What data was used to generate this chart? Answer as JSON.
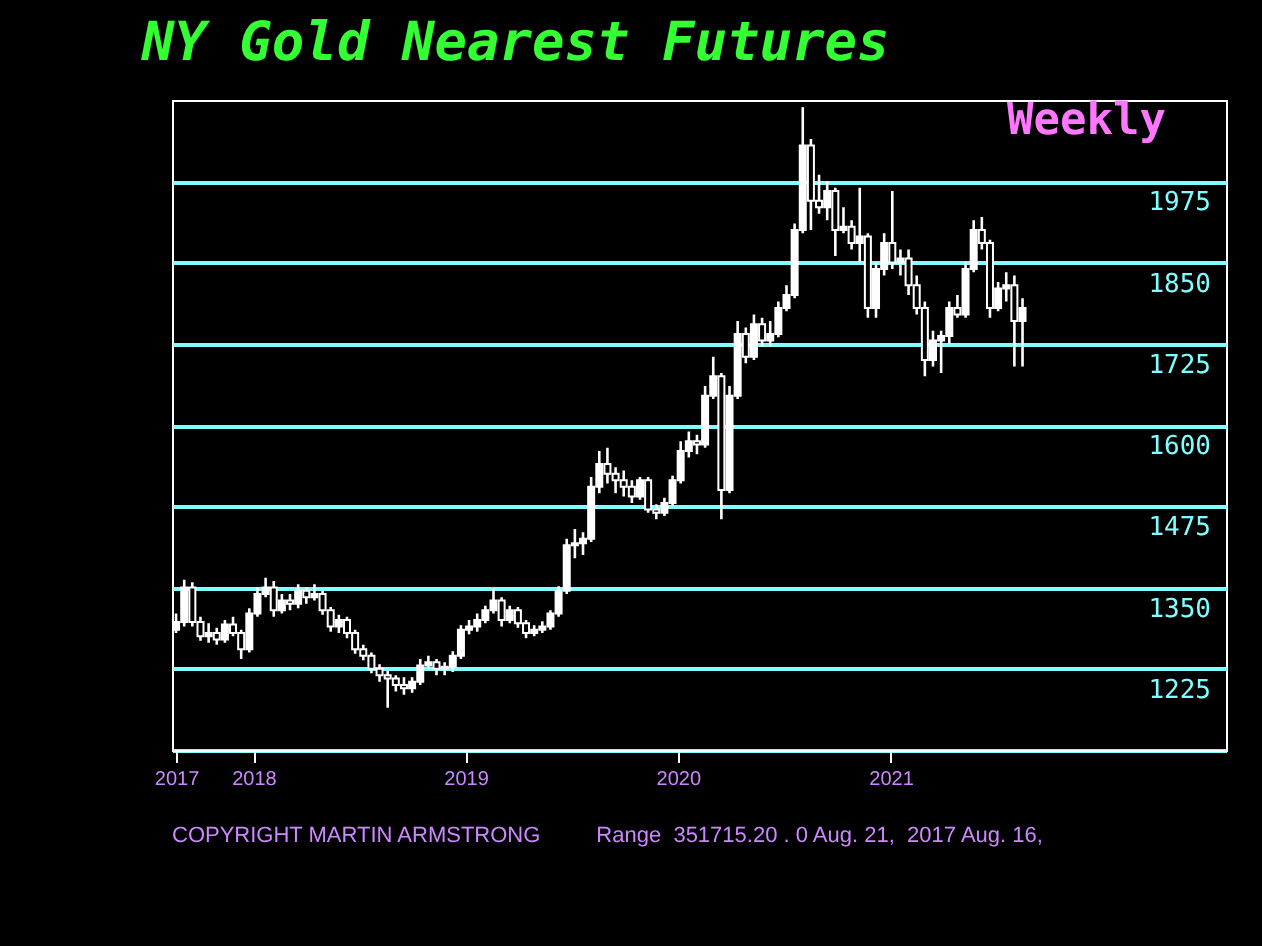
{
  "chart_data": {
    "type": "candlestick",
    "title": "NY Gold Nearest Futures",
    "subtitle": "Weekly",
    "color": "#ffffff",
    "annotations": [
      "COPYRIGHT MARTIN ARMSTRONG",
      "Range  351715.20 . 0 Aug. 21,  2017 Aug. 16,"
    ],
    "xlim": [
      "2017-08-14",
      "2022-08-01"
    ],
    "xticks": [
      {
        "value": "2017-08-21",
        "label": "2017"
      },
      "2018",
      "2019",
      "2020",
      "2021"
    ],
    "ylim": [
      1100,
      2100
    ],
    "yticks": [
      {
        "value": 1100,
        "label": null
      },
      1225,
      1350,
      1475,
      1600,
      1725,
      1850,
      1975
    ],
    "grid": "y",
    "x": [
      "2017-08-21",
      "2017-09-04",
      "2017-09-18",
      "2017-10-02",
      "2017-10-16",
      "2017-10-30",
      "2017-11-13",
      "2017-11-27",
      "2017-12-11",
      "2017-12-25",
      "2018-01-08",
      "2018-01-22",
      "2018-02-05",
      "2018-02-19",
      "2018-03-05",
      "2018-03-19",
      "2018-04-02",
      "2018-04-16",
      "2018-04-30",
      "2018-05-14",
      "2018-05-28",
      "2018-06-11",
      "2018-06-25",
      "2018-07-09",
      "2018-07-23",
      "2018-08-06",
      "2018-08-20",
      "2018-09-03",
      "2018-09-17",
      "2018-10-01",
      "2018-10-15",
      "2018-10-29",
      "2018-11-12",
      "2018-11-26",
      "2018-12-10",
      "2018-12-24",
      "2019-01-07",
      "2019-01-21",
      "2019-02-04",
      "2019-02-18",
      "2019-03-04",
      "2019-03-18",
      "2019-04-01",
      "2019-04-15",
      "2019-04-29",
      "2019-05-13",
      "2019-05-27",
      "2019-06-10",
      "2019-06-24",
      "2019-07-08",
      "2019-07-22",
      "2019-08-05",
      "2019-08-19",
      "2019-09-02",
      "2019-09-16",
      "2019-09-30",
      "2019-10-14",
      "2019-10-28",
      "2019-11-11",
      "2019-11-25",
      "2019-12-09",
      "2019-12-23",
      "2020-01-06",
      "2020-01-20",
      "2020-02-03",
      "2020-02-17",
      "2020-03-02",
      "2020-03-16",
      "2020-03-30",
      "2020-04-13",
      "2020-04-27",
      "2020-05-11",
      "2020-05-25",
      "2020-06-08",
      "2020-06-22",
      "2020-07-06",
      "2020-07-20",
      "2020-08-03",
      "2020-08-17",
      "2020-08-31",
      "2020-09-14",
      "2020-09-28",
      "2020-10-12",
      "2020-10-26",
      "2020-11-09",
      "2020-11-23",
      "2020-12-07",
      "2020-12-21",
      "2021-01-04",
      "2021-01-18",
      "2021-02-01",
      "2021-02-15",
      "2021-03-01",
      "2021-03-15",
      "2021-03-29",
      "2021-04-12",
      "2021-04-26",
      "2021-05-10",
      "2021-05-24",
      "2021-06-07",
      "2021-06-21",
      "2021-07-05",
      "2021-07-19",
      "2021-08-02",
      "2021-08-16"
    ],
    "ohlc": [
      [
        1285,
        1310,
        1280,
        1297
      ],
      [
        1297,
        1362,
        1290,
        1350
      ],
      [
        1350,
        1358,
        1290,
        1297
      ],
      [
        1297,
        1305,
        1268,
        1275
      ],
      [
        1275,
        1295,
        1265,
        1280
      ],
      [
        1280,
        1288,
        1262,
        1270
      ],
      [
        1270,
        1300,
        1265,
        1293
      ],
      [
        1293,
        1305,
        1275,
        1280
      ],
      [
        1280,
        1285,
        1240,
        1255
      ],
      [
        1255,
        1318,
        1250,
        1310
      ],
      [
        1310,
        1350,
        1305,
        1340
      ],
      [
        1340,
        1365,
        1335,
        1350
      ],
      [
        1350,
        1360,
        1305,
        1315
      ],
      [
        1315,
        1340,
        1310,
        1330
      ],
      [
        1330,
        1340,
        1315,
        1325
      ],
      [
        1325,
        1355,
        1318,
        1345
      ],
      [
        1345,
        1350,
        1325,
        1335
      ],
      [
        1335,
        1355,
        1330,
        1340
      ],
      [
        1340,
        1345,
        1308,
        1315
      ],
      [
        1315,
        1320,
        1282,
        1290
      ],
      [
        1290,
        1308,
        1280,
        1300
      ],
      [
        1300,
        1305,
        1272,
        1280
      ],
      [
        1280,
        1285,
        1248,
        1255
      ],
      [
        1255,
        1262,
        1238,
        1245
      ],
      [
        1245,
        1250,
        1218,
        1225
      ],
      [
        1225,
        1232,
        1205,
        1215
      ],
      [
        1215,
        1222,
        1165,
        1210
      ],
      [
        1210,
        1215,
        1190,
        1200
      ],
      [
        1200,
        1212,
        1185,
        1195
      ],
      [
        1195,
        1212,
        1188,
        1205
      ],
      [
        1205,
        1240,
        1200,
        1230
      ],
      [
        1230,
        1245,
        1225,
        1235
      ],
      [
        1235,
        1240,
        1215,
        1225
      ],
      [
        1225,
        1235,
        1215,
        1228
      ],
      [
        1228,
        1252,
        1220,
        1245
      ],
      [
        1245,
        1292,
        1240,
        1285
      ],
      [
        1285,
        1300,
        1278,
        1290
      ],
      [
        1290,
        1310,
        1282,
        1300
      ],
      [
        1300,
        1322,
        1295,
        1315
      ],
      [
        1315,
        1348,
        1310,
        1330
      ],
      [
        1330,
        1335,
        1290,
        1300
      ],
      [
        1300,
        1322,
        1295,
        1315
      ],
      [
        1315,
        1320,
        1288,
        1295
      ],
      [
        1295,
        1300,
        1272,
        1280
      ],
      [
        1280,
        1292,
        1275,
        1285
      ],
      [
        1285,
        1298,
        1280,
        1290
      ],
      [
        1290,
        1315,
        1285,
        1310
      ],
      [
        1310,
        1352,
        1305,
        1345
      ],
      [
        1345,
        1425,
        1340,
        1415
      ],
      [
        1415,
        1440,
        1395,
        1418
      ],
      [
        1418,
        1435,
        1400,
        1425
      ],
      [
        1425,
        1520,
        1420,
        1505
      ],
      [
        1505,
        1560,
        1495,
        1540
      ],
      [
        1540,
        1565,
        1510,
        1525
      ],
      [
        1525,
        1535,
        1495,
        1515
      ],
      [
        1515,
        1530,
        1490,
        1505
      ],
      [
        1505,
        1515,
        1480,
        1490
      ],
      [
        1490,
        1520,
        1485,
        1515
      ],
      [
        1515,
        1520,
        1465,
        1470
      ],
      [
        1470,
        1478,
        1455,
        1465
      ],
      [
        1465,
        1488,
        1460,
        1480
      ],
      [
        1480,
        1522,
        1475,
        1515
      ],
      [
        1515,
        1575,
        1510,
        1560
      ],
      [
        1560,
        1590,
        1550,
        1575
      ],
      [
        1575,
        1585,
        1555,
        1570
      ],
      [
        1570,
        1660,
        1565,
        1645
      ],
      [
        1645,
        1705,
        1640,
        1675
      ],
      [
        1675,
        1680,
        1455,
        1500
      ],
      [
        1500,
        1660,
        1495,
        1645
      ],
      [
        1645,
        1760,
        1640,
        1740
      ],
      [
        1740,
        1750,
        1695,
        1705
      ],
      [
        1705,
        1770,
        1700,
        1755
      ],
      [
        1755,
        1765,
        1720,
        1730
      ],
      [
        1730,
        1760,
        1720,
        1740
      ],
      [
        1740,
        1790,
        1735,
        1780
      ],
      [
        1780,
        1815,
        1775,
        1800
      ],
      [
        1800,
        1910,
        1795,
        1900
      ],
      [
        1900,
        2089,
        1895,
        2030
      ],
      [
        2030,
        2040,
        1900,
        1945
      ],
      [
        1945,
        1985,
        1925,
        1935
      ],
      [
        1935,
        1975,
        1915,
        1960
      ],
      [
        1960,
        1965,
        1860,
        1900
      ],
      [
        1900,
        1935,
        1895,
        1905
      ],
      [
        1905,
        1915,
        1870,
        1880
      ],
      [
        1880,
        1965,
        1850,
        1890
      ],
      [
        1890,
        1895,
        1765,
        1780
      ],
      [
        1780,
        1850,
        1765,
        1840
      ],
      [
        1840,
        1895,
        1830,
        1880
      ],
      [
        1880,
        1960,
        1840,
        1850
      ],
      [
        1850,
        1870,
        1830,
        1856
      ],
      [
        1856,
        1870,
        1800,
        1815
      ],
      [
        1815,
        1830,
        1770,
        1780
      ],
      [
        1780,
        1790,
        1675,
        1700
      ],
      [
        1700,
        1745,
        1690,
        1730
      ],
      [
        1730,
        1745,
        1680,
        1737
      ],
      [
        1737,
        1790,
        1725,
        1780
      ],
      [
        1780,
        1800,
        1765,
        1770
      ],
      [
        1770,
        1850,
        1765,
        1840
      ],
      [
        1840,
        1915,
        1835,
        1900
      ],
      [
        1900,
        1920,
        1870,
        1880
      ],
      [
        1880,
        1885,
        1765,
        1780
      ],
      [
        1780,
        1820,
        1775,
        1810
      ],
      [
        1810,
        1835,
        1790,
        1815
      ],
      [
        1815,
        1830,
        1690,
        1760
      ],
      [
        1760,
        1795,
        1690,
        1780
      ]
    ]
  }
}
